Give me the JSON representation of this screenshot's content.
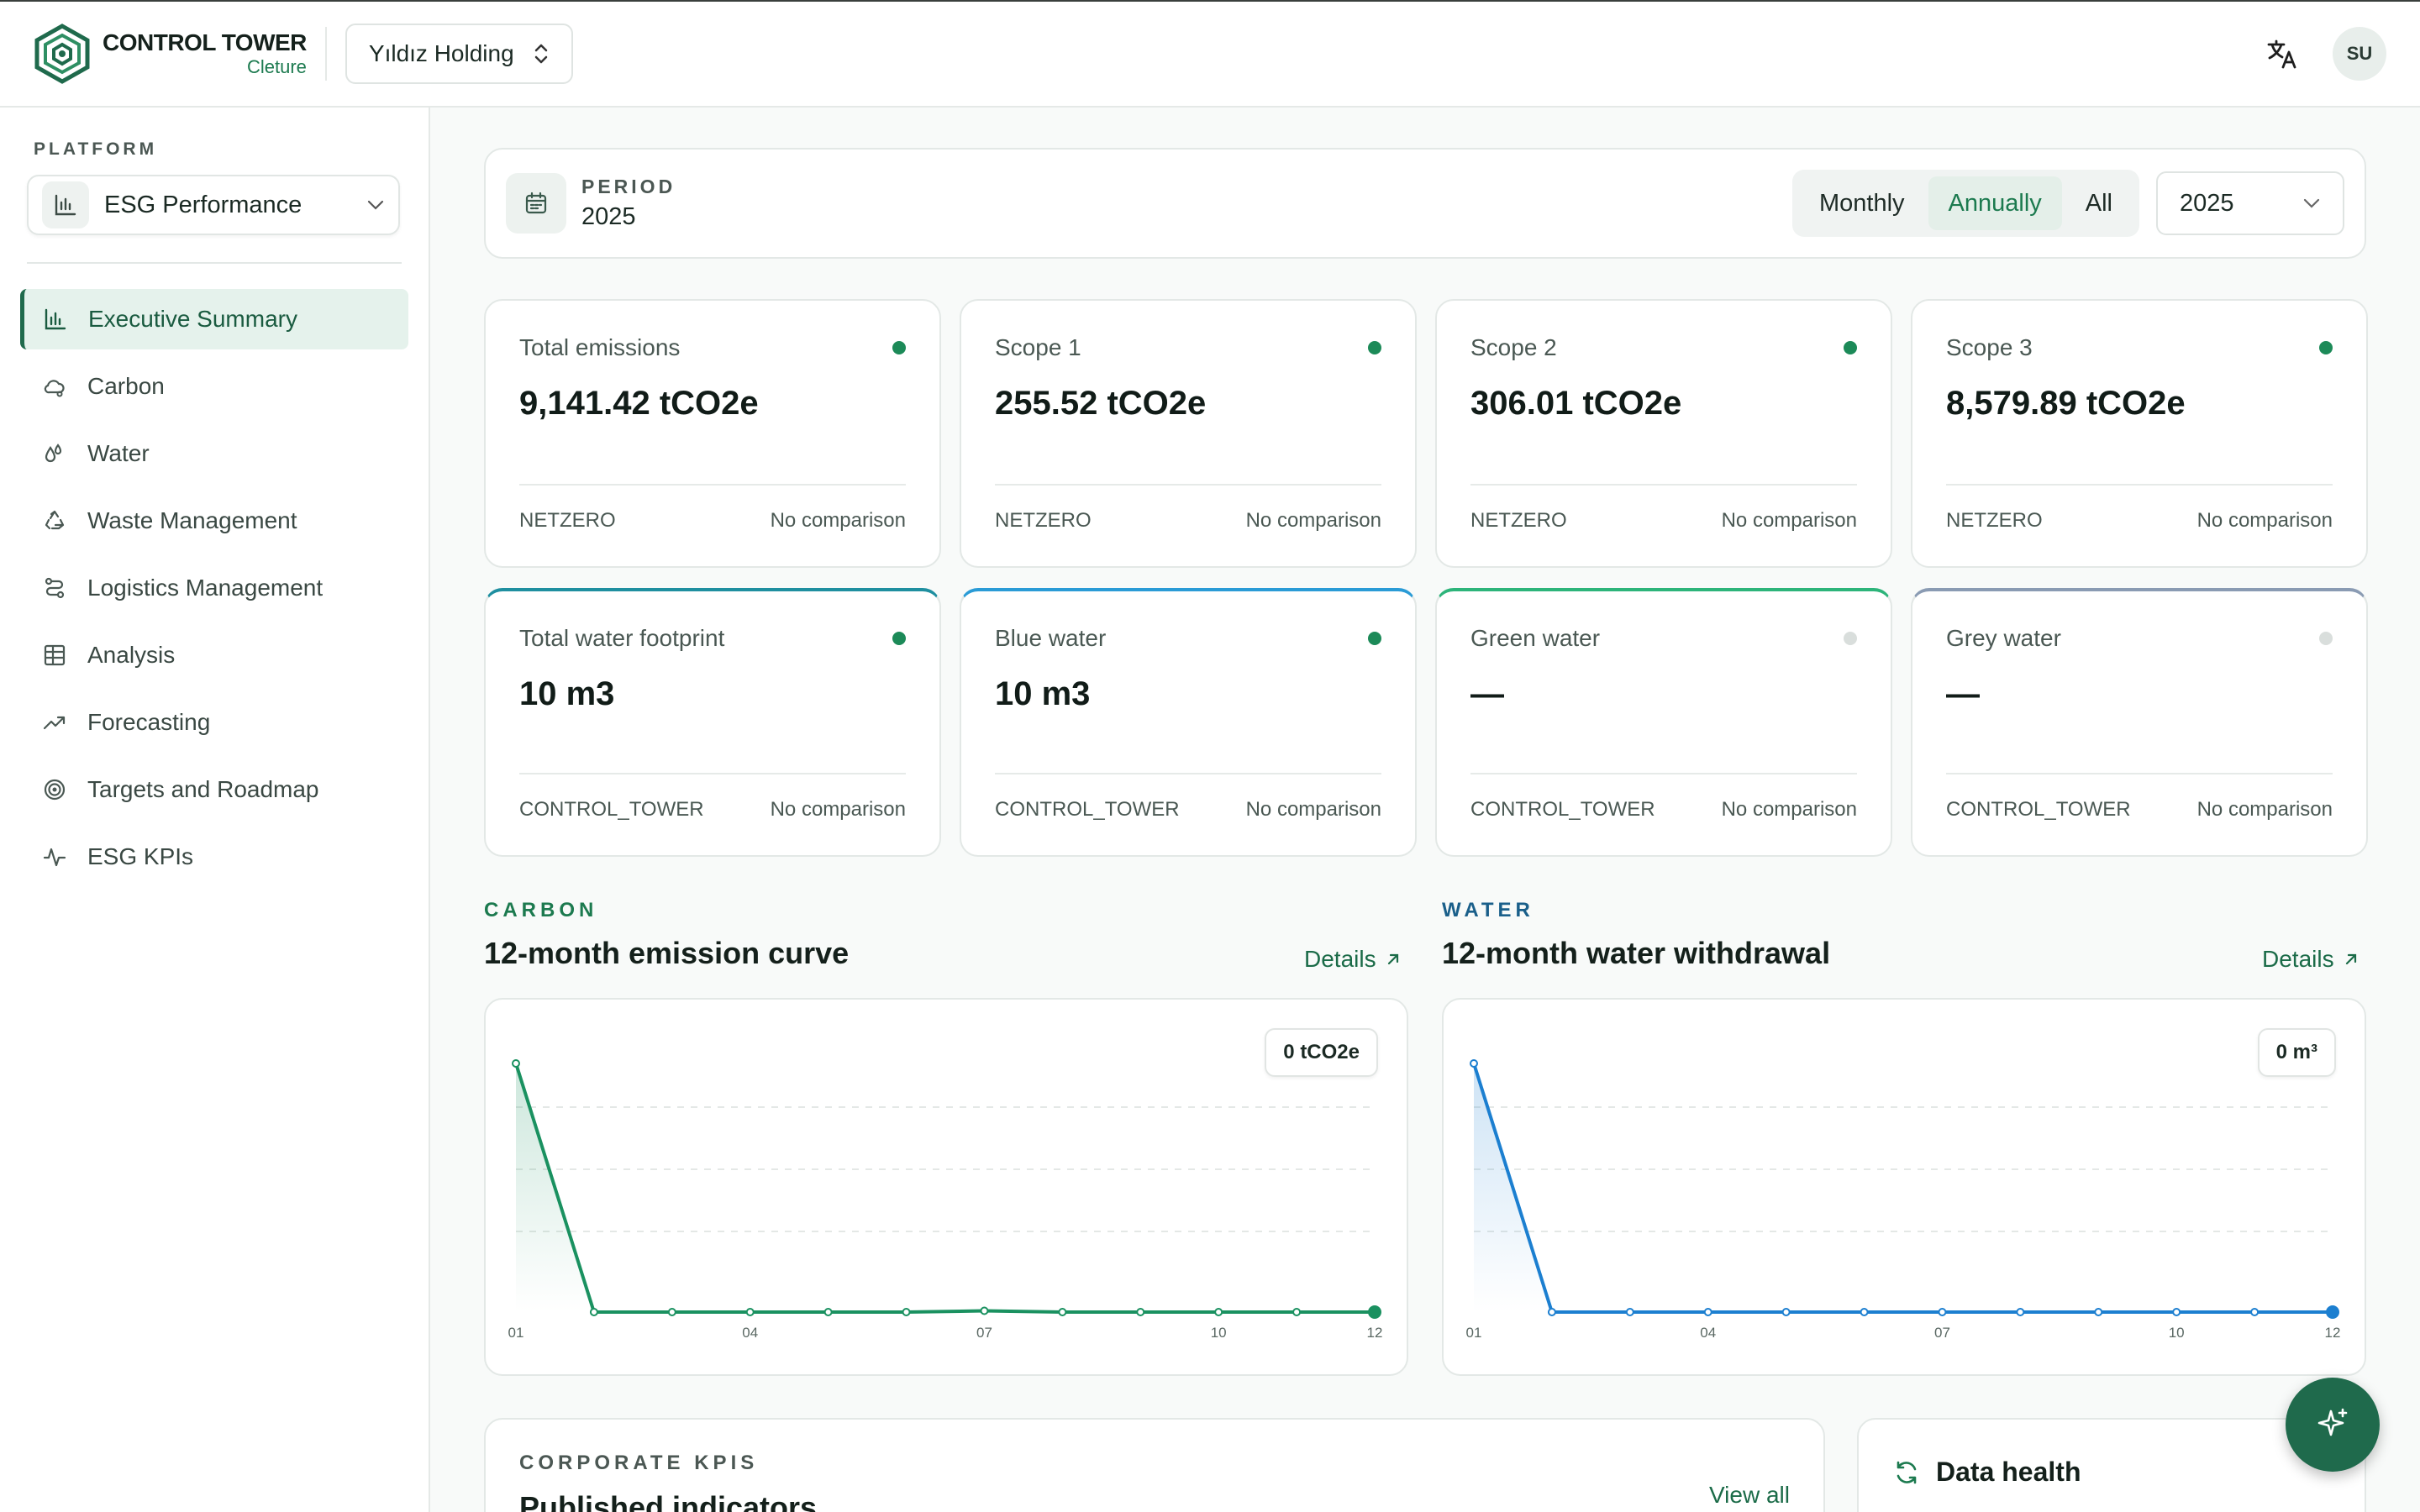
{
  "header": {
    "logo_title": "CONTROL TOWER",
    "logo_subtitle": "Cleture",
    "organization": "Yıldız Holding",
    "user_initials": "SU"
  },
  "sidebar": {
    "section_label": "PLATFORM",
    "platform": "ESG Performance",
    "items": [
      {
        "label": "Executive Summary",
        "icon": "bar-chart-icon",
        "active": true
      },
      {
        "label": "Carbon",
        "icon": "cloud-icon"
      },
      {
        "label": "Water",
        "icon": "droplets-icon"
      },
      {
        "label": "Waste Management",
        "icon": "recycle-icon"
      },
      {
        "label": "Logistics Management",
        "icon": "route-icon"
      },
      {
        "label": "Analysis",
        "icon": "table-icon"
      },
      {
        "label": "Forecasting",
        "icon": "trending-up-icon"
      },
      {
        "label": "Targets and Roadmap",
        "icon": "target-icon"
      },
      {
        "label": "ESG KPIs",
        "icon": "activity-icon"
      }
    ]
  },
  "period": {
    "label": "PERIOD",
    "value": "2025",
    "modes": [
      "Monthly",
      "Annually",
      "All"
    ],
    "selected_mode": "Annually",
    "year": "2025"
  },
  "emission_cards": [
    {
      "label": "Total emissions",
      "value": "9,141.42 tCO2e",
      "source": "NETZERO",
      "comparison": "No comparison",
      "status": "active"
    },
    {
      "label": "Scope 1",
      "value": "255.52 tCO2e",
      "source": "NETZERO",
      "comparison": "No comparison",
      "status": "active"
    },
    {
      "label": "Scope 2",
      "value": "306.01 tCO2e",
      "source": "NETZERO",
      "comparison": "No comparison",
      "status": "active"
    },
    {
      "label": "Scope 3",
      "value": "8,579.89 tCO2e",
      "source": "NETZERO",
      "comparison": "No comparison",
      "status": "active"
    }
  ],
  "water_cards": [
    {
      "label": "Total water footprint",
      "value": "10 m3",
      "source": "CONTROL_TOWER",
      "comparison": "No comparison",
      "status": "active",
      "accent": "#1f8fa0"
    },
    {
      "label": "Blue water",
      "value": "10 m3",
      "source": "CONTROL_TOWER",
      "comparison": "No comparison",
      "status": "active",
      "accent": "#2a9bd6"
    },
    {
      "label": "Green water",
      "value": "—",
      "source": "CONTROL_TOWER",
      "comparison": "No comparison",
      "status": "inactive",
      "accent": "#2db47a"
    },
    {
      "label": "Grey water",
      "value": "—",
      "source": "CONTROL_TOWER",
      "comparison": "No comparison",
      "status": "inactive",
      "accent": "#8a9bb3"
    }
  ],
  "carbon_chart": {
    "section": "CARBON",
    "title": "12-month emission curve",
    "details": "Details",
    "badge": "0 tCO2e"
  },
  "water_chart": {
    "section": "WATER",
    "title": "12-month water withdrawal",
    "details": "Details",
    "badge": "0 m³"
  },
  "chart_data": [
    {
      "type": "area",
      "title": "12-month emission curve",
      "x": [
        "01",
        "02",
        "03",
        "04",
        "05",
        "06",
        "07",
        "08",
        "09",
        "10",
        "11",
        "12"
      ],
      "tick_labels": [
        "01",
        "04",
        "07",
        "10",
        "12"
      ],
      "values": [
        1,
        0,
        0,
        0,
        0,
        0,
        0.005,
        0,
        0,
        0,
        0,
        0
      ],
      "color": "#1a9160",
      "ylim": [
        0,
        1
      ],
      "grid": true
    },
    {
      "type": "area",
      "title": "12-month water withdrawal",
      "x": [
        "01",
        "02",
        "03",
        "04",
        "05",
        "06",
        "07",
        "08",
        "09",
        "10",
        "11",
        "12"
      ],
      "tick_labels": [
        "01",
        "04",
        "07",
        "10",
        "12"
      ],
      "values": [
        1,
        0,
        0,
        0,
        0,
        0,
        0,
        0,
        0,
        0,
        0,
        0
      ],
      "color": "#1c7fd0",
      "ylim": [
        0,
        1
      ],
      "grid": true
    }
  ],
  "kpis": {
    "section": "CORPORATE KPIS",
    "title": "Published indicators",
    "view_all": "View all"
  },
  "data_health": {
    "title": "Data health"
  },
  "colors": {
    "brand": "#1f6a4c",
    "accent_green": "#1c8a58",
    "carbon_line": "#1a9160",
    "water_line": "#1c7fd0"
  }
}
